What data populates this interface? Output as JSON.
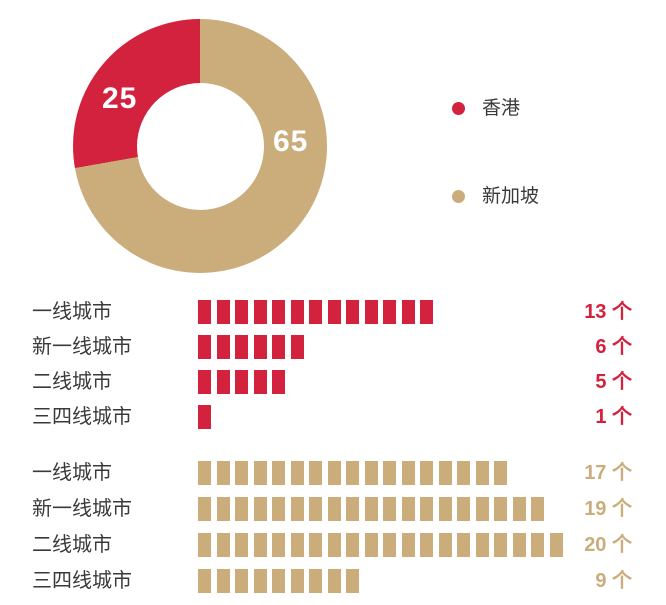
{
  "page": {
    "background": "#ffffff"
  },
  "chart_data": [
    {
      "type": "pie",
      "style": "donut",
      "title": "",
      "slices": [
        {
          "label": "香港",
          "value": 25,
          "color": "#d2223e"
        },
        {
          "label": "新加坡",
          "value": 65,
          "color": "#cbad7b"
        }
      ],
      "draw_order_from_top_clockwise": [
        1,
        0
      ],
      "labels_on_chart": [
        "25",
        "65"
      ],
      "label_color": "#ffffff",
      "legend_position": "right"
    },
    {
      "type": "bar",
      "style": "pictogram-segments",
      "title": "",
      "unit": "个",
      "categories": [
        "一线城市",
        "新一线城市",
        "二线城市",
        "三四线城市"
      ],
      "series": [
        {
          "name": "香港",
          "color": "#d2223e",
          "values": [
            13,
            6,
            5,
            1
          ]
        },
        {
          "name": "新加坡",
          "color": "#cbad7b",
          "values": [
            17,
            19,
            20,
            9
          ]
        }
      ],
      "value_labels": [
        "13 个",
        "6 个",
        "5 个",
        "1 个",
        "17 个",
        "19 个",
        "20 个",
        "9 个"
      ]
    }
  ]
}
